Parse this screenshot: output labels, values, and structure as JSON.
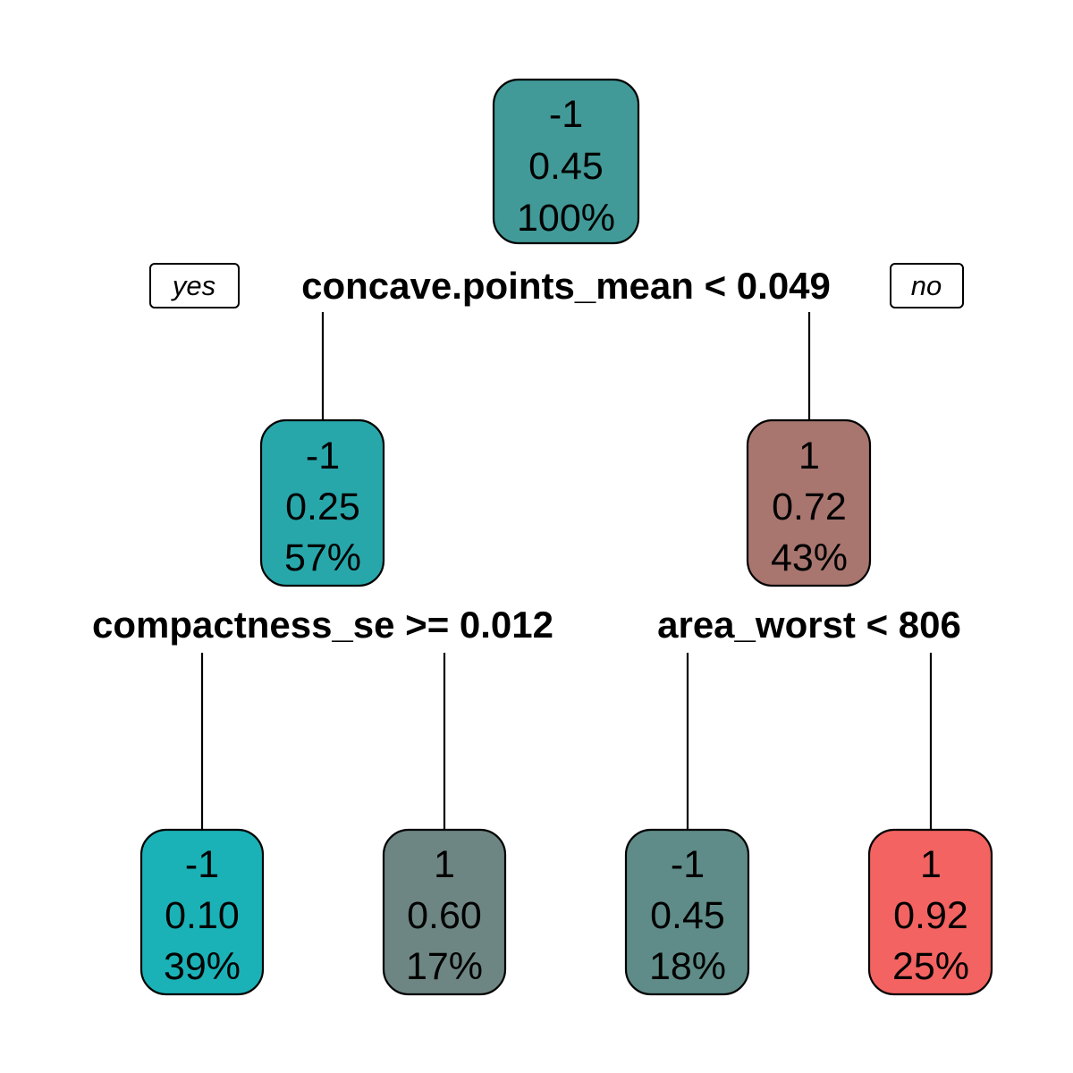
{
  "tree": {
    "root": {
      "class": "-1",
      "prob": "0.45",
      "pct": "100%",
      "color": "#419a98",
      "split": "concave.points_mean < 0.049",
      "yes_label": "yes",
      "no_label": "no"
    },
    "left": {
      "class": "-1",
      "prob": "0.25",
      "pct": "57%",
      "color": "#28a7ab",
      "split": "compactness_se >= 0.012"
    },
    "right": {
      "class": "1",
      "prob": "0.72",
      "pct": "43%",
      "color": "#a8766f",
      "split": "area_worst < 806"
    },
    "leaves": [
      {
        "class": "-1",
        "prob": "0.10",
        "pct": "39%",
        "color": "#1ab2b6"
      },
      {
        "class": "1",
        "prob": "0.60",
        "pct": "17%",
        "color": "#6e8683"
      },
      {
        "class": "-1",
        "prob": "0.45",
        "pct": "18%",
        "color": "#5f8c88"
      },
      {
        "class": "1",
        "prob": "0.92",
        "pct": "25%",
        "color": "#f26361"
      }
    ]
  }
}
